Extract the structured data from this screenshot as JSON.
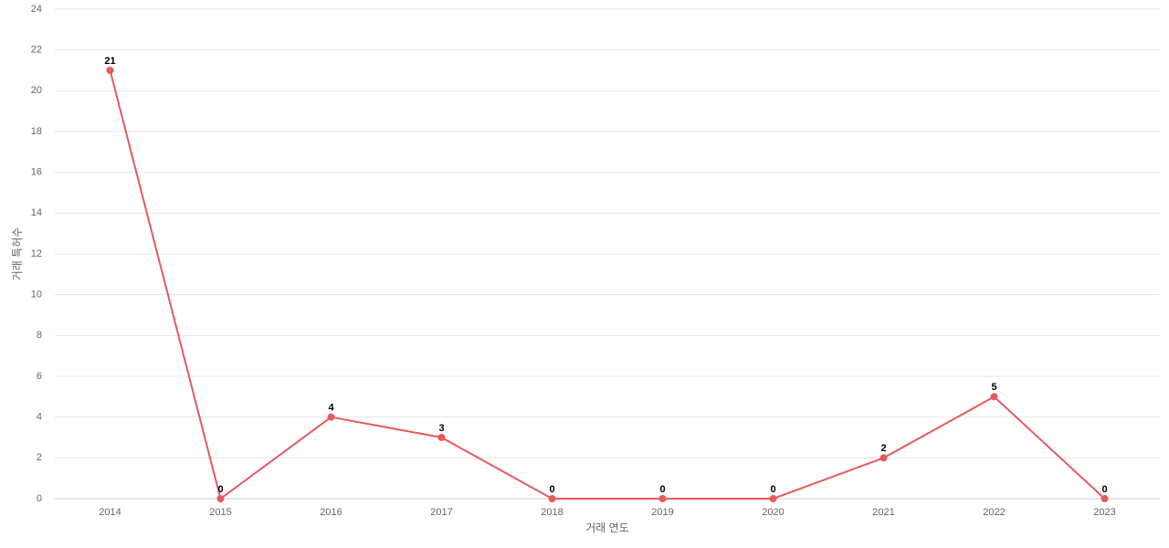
{
  "chart_data": {
    "type": "line",
    "x_label": "거래 연도",
    "y_label": "거래 특허수",
    "categories": [
      "2014",
      "2015",
      "2016",
      "2017",
      "2018",
      "2019",
      "2020",
      "2021",
      "2022",
      "2023"
    ],
    "values": [
      21,
      0,
      4,
      3,
      0,
      0,
      0,
      2,
      5,
      0
    ],
    "color": "#e85a5a",
    "ylim": [
      0,
      24
    ],
    "yticks": [
      0,
      2,
      4,
      6,
      8,
      10,
      12,
      14,
      16,
      18,
      20,
      22,
      24
    ],
    "grid": true
  }
}
